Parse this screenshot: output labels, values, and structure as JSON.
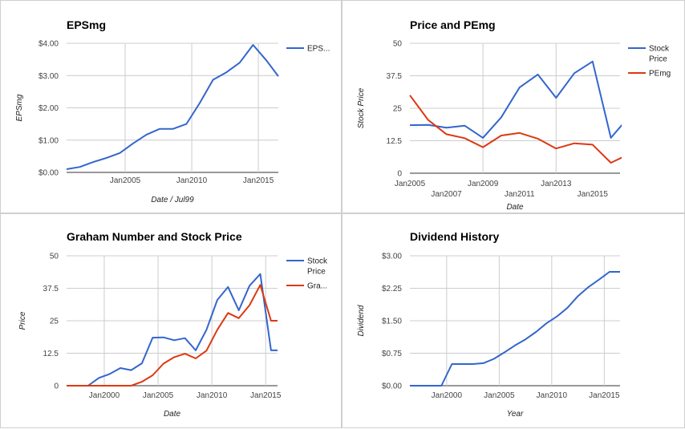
{
  "colors": {
    "blue": "#3366cc",
    "red": "#dc3912"
  },
  "chart_data": [
    {
      "type": "line",
      "title": "EPSmg",
      "xlabel": "Date / Jul99",
      "ylabel": "EPSmg",
      "xlim": [
        2000.6,
        2016.5
      ],
      "ylim": [
        0,
        4
      ],
      "yticks": [
        0,
        1,
        2,
        3,
        4
      ],
      "ytick_labels": [
        "$0.00",
        "$1.00",
        "$2.00",
        "$3.00",
        "$4.00"
      ],
      "xticks": [
        2005,
        2010,
        2015
      ],
      "xtick_labels": [
        "Jan2005",
        "Jan2010",
        "Jan2015"
      ],
      "xgrid": [
        2005,
        2010,
        2015
      ],
      "legend": "right",
      "series": [
        {
          "name": "EPS...",
          "color": "#3366cc",
          "x": [
            2000.6,
            2001.6,
            2002.6,
            2003.6,
            2004.6,
            2005.6,
            2006.6,
            2007.6,
            2008.6,
            2009.6,
            2010.6,
            2011.6,
            2012.6,
            2013.6,
            2014.6,
            2015.6,
            2016.5
          ],
          "y": [
            0.1,
            0.17,
            0.32,
            0.45,
            0.6,
            0.9,
            1.17,
            1.35,
            1.35,
            1.5,
            2.15,
            2.87,
            3.1,
            3.4,
            3.95,
            3.47,
            2.98
          ]
        }
      ]
    },
    {
      "type": "line",
      "title": "Price and PEmg",
      "xlabel": "Date",
      "ylabel": "Stock Price",
      "xlim": [
        2005,
        2016.5
      ],
      "ylim": [
        0,
        50
      ],
      "yticks": [
        0,
        12.5,
        25,
        37.5,
        50
      ],
      "ytick_labels": [
        "0",
        "12.5",
        "25",
        "37.5",
        "50"
      ],
      "xticks": [
        2005,
        2007,
        2009,
        2011,
        2013,
        2015
      ],
      "xtick_labels": [
        "Jan2005",
        "Jan2007",
        "Jan2009",
        "Jan2011",
        "Jan2013",
        "Jan2015"
      ],
      "xgrid": [
        2009,
        2013
      ],
      "legend": "right",
      "series": [
        {
          "name": "Stock Price",
          "color": "#3366cc",
          "x": [
            2005,
            2006,
            2007,
            2008,
            2009,
            2010,
            2011,
            2012,
            2013,
            2014,
            2015,
            2016,
            2016.9
          ],
          "y": [
            18.5,
            18.6,
            17.5,
            18.3,
            13.6,
            21.5,
            33.0,
            38.0,
            29.0,
            38.5,
            43.0,
            13.6,
            21.0
          ]
        },
        {
          "name": "PEmg",
          "color": "#dc3912",
          "x": [
            2005,
            2006,
            2007,
            2008,
            2009,
            2010,
            2011,
            2012,
            2013,
            2014,
            2015,
            2016,
            2016.9
          ],
          "y": [
            30.0,
            20.5,
            15.0,
            13.5,
            10.0,
            14.5,
            15.5,
            13.3,
            9.5,
            11.5,
            11.0,
            4.0,
            7.0
          ]
        }
      ]
    },
    {
      "type": "line",
      "title": "Graham Number and Stock Price",
      "xlabel": "Date",
      "ylabel": "Price",
      "xlim": [
        1996.5,
        2016.1
      ],
      "ylim": [
        0,
        50
      ],
      "yticks": [
        0,
        12.5,
        25,
        37.5,
        50
      ],
      "ytick_labels": [
        "0",
        "12.5",
        "25",
        "37.5",
        "50"
      ],
      "xticks": [
        2000,
        2005,
        2010,
        2015
      ],
      "xtick_labels": [
        "Jan2000",
        "Jan2005",
        "Jan2010",
        "Jan2015"
      ],
      "xgrid": [
        2000,
        2005,
        2010,
        2015
      ],
      "legend": "right",
      "series": [
        {
          "name": "Stock Price",
          "color": "#3366cc",
          "x": [
            1996.5,
            1997.5,
            1998.5,
            1999.5,
            2000.5,
            2001.5,
            2002.5,
            2003.5,
            2004.5,
            2005.5,
            2006.5,
            2007.5,
            2008.5,
            2009.5,
            2010.5,
            2011.5,
            2012.5,
            2013.5,
            2014.5,
            2015.5,
            2016.1
          ],
          "y": [
            0,
            0,
            0,
            3.0,
            4.5,
            6.8,
            6.0,
            8.6,
            18.5,
            18.6,
            17.5,
            18.3,
            13.6,
            21.5,
            33.0,
            38.0,
            29.0,
            38.5,
            43.0,
            13.6,
            13.6
          ]
        },
        {
          "name": "Gra...",
          "color": "#dc3912",
          "x": [
            1996.5,
            1997.5,
            1998.5,
            1999.5,
            2000.5,
            2001.5,
            2002.5,
            2003.5,
            2004.5,
            2005.5,
            2006.5,
            2007.5,
            2008.5,
            2009.5,
            2010.5,
            2011.5,
            2012.5,
            2013.5,
            2014.5,
            2015.5,
            2016.1
          ],
          "y": [
            0,
            0,
            0,
            0,
            0,
            0,
            0,
            1.5,
            4.0,
            8.5,
            11.0,
            12.3,
            10.5,
            13.5,
            21.5,
            28.0,
            26.0,
            31.0,
            38.8,
            25.0,
            25.0
          ]
        }
      ]
    },
    {
      "type": "line",
      "title": "Dividend History",
      "xlabel": "Year",
      "ylabel": "Dividend",
      "xlim": [
        1996.5,
        2016.5
      ],
      "ylim": [
        0,
        3
      ],
      "yticks": [
        0,
        0.75,
        1.5,
        2.25,
        3
      ],
      "ytick_labels": [
        "$0.00",
        "$0.75",
        "$1.50",
        "$2.25",
        "$3.00"
      ],
      "xticks": [
        2000,
        2005,
        2010,
        2015
      ],
      "xtick_labels": [
        "Jan2000",
        "Jan2005",
        "Jan2010",
        "Jan2015"
      ],
      "xgrid": [
        2000,
        2005,
        2010,
        2015
      ],
      "legend": "none",
      "series": [
        {
          "name": "",
          "color": "#3366cc",
          "x": [
            1996.5,
            1997.5,
            1998.5,
            1999.5,
            2000.5,
            2001.5,
            2002.5,
            2003.5,
            2004.5,
            2005.5,
            2006.5,
            2007.5,
            2008.5,
            2009.5,
            2010.5,
            2011.5,
            2012.5,
            2013.5,
            2014.5,
            2015.5,
            2016.5
          ],
          "y": [
            0,
            0,
            0,
            0,
            0.5,
            0.5,
            0.5,
            0.52,
            0.62,
            0.77,
            0.93,
            1.07,
            1.24,
            1.44,
            1.6,
            1.8,
            2.07,
            2.28,
            2.45,
            2.63,
            2.63
          ]
        }
      ]
    }
  ]
}
